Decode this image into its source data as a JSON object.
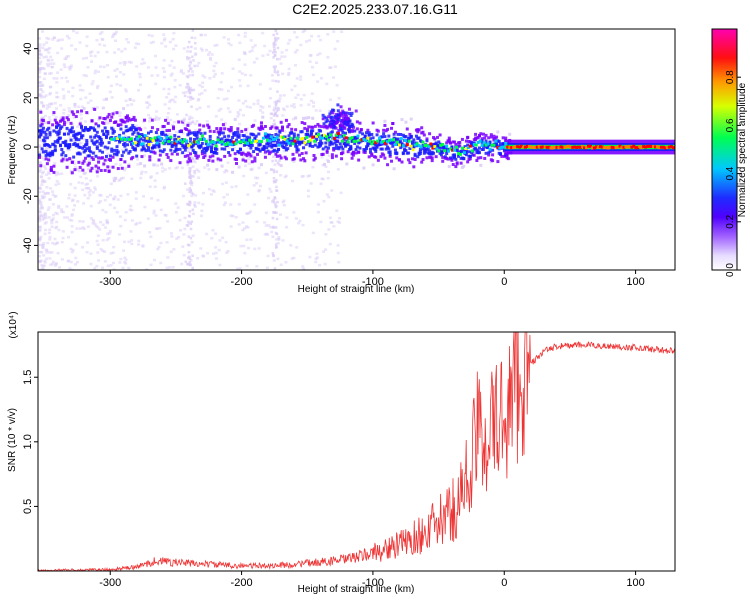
{
  "title": "C2E2.2025.233.07.16.G11",
  "chart_data": [
    {
      "type": "heatmap",
      "xlabel": "Height of straight line (km)",
      "ylabel": "Frequency (Hz)",
      "xlim": [
        -355,
        130
      ],
      "ylim": [
        -50,
        48
      ],
      "xticks": [
        -300,
        -200,
        -100,
        0,
        100
      ],
      "yticks": [
        -40,
        -20,
        0,
        20,
        40
      ],
      "colorbar": {
        "label": "Normalized spectral amplitude",
        "range": [
          0,
          1
        ],
        "ticks": [
          "0.0",
          "0.2",
          "0.4",
          "0.6",
          "0.8"
        ],
        "colors": [
          "#ffffff",
          "#d9c9f7",
          "#7a00ff",
          "#1a1aff",
          "#00c8ff",
          "#00ff40",
          "#ffff00",
          "#ff8000",
          "#ff0000",
          "#ff00c0"
        ]
      },
      "ridge_center_hz": {
        "x": [
          -345,
          -300,
          -260,
          -220,
          -180,
          -150,
          -130,
          -110,
          -90,
          -70,
          -50,
          -35,
          -20,
          0,
          20,
          60,
          100,
          130
        ],
        "y": [
          3,
          3,
          3,
          2,
          3,
          3,
          4,
          3,
          2,
          1,
          0,
          -2,
          1,
          0,
          0,
          0,
          0,
          0
        ]
      }
    },
    {
      "type": "line",
      "xlabel": "Height of straight line (km)",
      "ylabel": "SNR (10 * v/v)",
      "scale_label": "(x10⁴)",
      "xlim": [
        -355,
        130
      ],
      "ylim": [
        0,
        1.85
      ],
      "xticks": [
        -300,
        -200,
        -100,
        0,
        100
      ],
      "yticks": [
        "0.5",
        "1.0",
        "1.5"
      ],
      "line_color": "#ee3333",
      "series": [
        {
          "x": [
            -355,
            -300,
            -280,
            -265,
            -255,
            -240,
            -220,
            -200,
            -180,
            -160,
            -140,
            -120,
            -100,
            -80,
            -60,
            -40,
            -30,
            -20,
            -10,
            0,
            10,
            20,
            30,
            40,
            60,
            80,
            100,
            130
          ],
          "y": [
            0.005,
            0.01,
            0.03,
            0.08,
            0.07,
            0.06,
            0.05,
            0.04,
            0.04,
            0.05,
            0.07,
            0.09,
            0.14,
            0.2,
            0.3,
            0.45,
            0.65,
            1.05,
            1.1,
            1.2,
            1.45,
            1.6,
            1.7,
            1.74,
            1.75,
            1.74,
            1.73,
            1.7
          ]
        }
      ]
    }
  ]
}
